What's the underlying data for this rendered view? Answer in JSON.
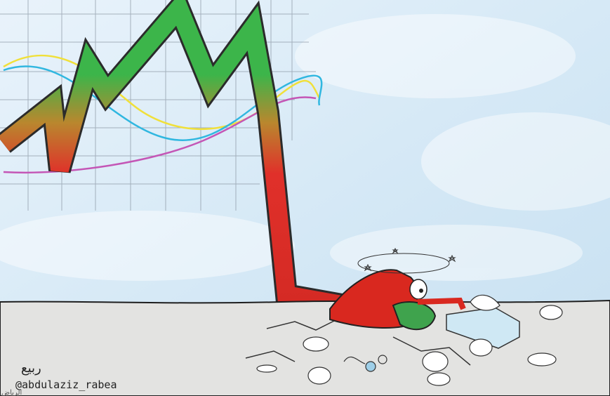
{
  "signature": {
    "arabic": "ربيع",
    "handle": "@abdulaziz_rabea",
    "publication": "الرياض"
  }
}
